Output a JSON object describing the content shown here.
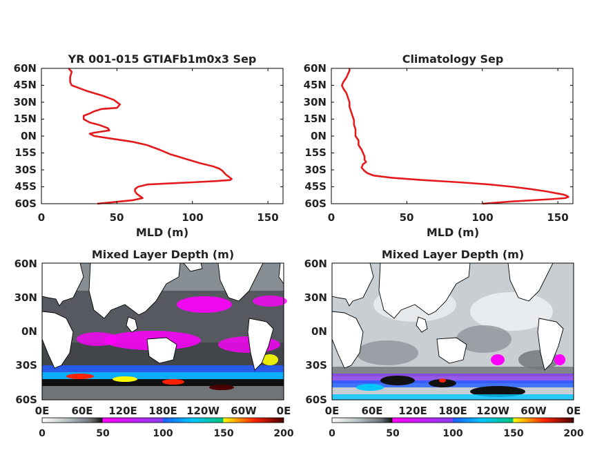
{
  "chart_data": [
    {
      "type": "line",
      "title": "YR 001-015 GTIAFb1m0x3 Sep",
      "xlabel": "MLD (m)",
      "ylabel": "",
      "xlim": [
        0,
        160
      ],
      "ylim": [
        -60,
        60
      ],
      "x_ticks": [
        "0",
        "50",
        "100",
        "150"
      ],
      "y_ticks": [
        "60N",
        "45N",
        "30N",
        "15N",
        "0N",
        "15S",
        "30S",
        "45S",
        "60S"
      ],
      "line_color": "#e41a1c",
      "series": [
        {
          "lat": [
            60,
            57,
            52,
            48,
            45,
            40,
            36,
            32,
            28,
            25,
            24,
            22,
            20,
            18,
            15,
            12,
            10,
            7,
            5,
            4,
            3,
            2,
            0,
            -2,
            -5,
            -8,
            -12,
            -16,
            -20,
            -24,
            -27,
            -29,
            -31,
            -34,
            -36,
            -38,
            -39,
            -40,
            -41,
            -42,
            -43,
            -45,
            -47,
            -49,
            -51,
            -53,
            -55,
            -57,
            -60
          ],
          "mld": [
            18,
            20,
            19,
            19,
            20,
            30,
            40,
            48,
            52,
            50,
            40,
            35,
            32,
            28,
            28,
            32,
            38,
            44,
            45,
            40,
            35,
            32,
            35,
            45,
            60,
            70,
            78,
            85,
            95,
            105,
            114,
            118,
            120,
            122,
            124,
            126,
            125,
            115,
            100,
            85,
            70,
            64,
            62,
            62,
            63,
            65,
            67,
            60,
            37
          ]
        }
      ]
    },
    {
      "type": "line",
      "title": "Climatology Sep",
      "xlabel": "MLD (m)",
      "ylabel": "",
      "xlim": [
        0,
        160
      ],
      "ylim": [
        -60,
        60
      ],
      "x_ticks": [
        "0",
        "50",
        "100",
        "150"
      ],
      "y_ticks": [
        "60N",
        "45N",
        "30N",
        "15N",
        "0N",
        "15S",
        "30S",
        "45S",
        "60S"
      ],
      "line_color": "#e41a1c",
      "series": [
        {
          "lat": [
            60,
            58,
            55,
            52,
            48,
            45,
            42,
            38,
            34,
            30,
            26,
            22,
            18,
            14,
            10,
            6,
            2,
            0,
            -4,
            -8,
            -12,
            -15,
            -18,
            -21,
            -23,
            -25,
            -28,
            -31,
            -33,
            -35,
            -37,
            -39,
            -41,
            -43,
            -45,
            -47,
            -49,
            -51,
            -52,
            -53,
            -54,
            -55,
            -56,
            -58,
            -60
          ],
          "mld": [
            12,
            12,
            11,
            10,
            8,
            7,
            8,
            10,
            11,
            12,
            12,
            13,
            14,
            15,
            15,
            16,
            16,
            16,
            18,
            18,
            20,
            21,
            22,
            22,
            23,
            21,
            20,
            22,
            24,
            28,
            40,
            60,
            85,
            105,
            120,
            132,
            142,
            150,
            154,
            156,
            157,
            155,
            145,
            120,
            100
          ]
        }
      ]
    },
    {
      "type": "heatmap",
      "title": "Mixed Layer Depth (m)",
      "x_ticks": [
        "0E",
        "60E",
        "120E",
        "180E",
        "120W",
        "60W",
        "0E"
      ],
      "y_ticks": [
        "60N",
        "30N",
        "0N",
        "30S",
        "60S"
      ],
      "ylim": [
        -60,
        60
      ],
      "colorbar_ticks": [
        "0",
        "50",
        "100",
        "150",
        "200"
      ],
      "colorbar_range": [
        0,
        200
      ]
    },
    {
      "type": "heatmap",
      "title": "Mixed Layer Depth (m)",
      "x_ticks": [
        "0E",
        "60E",
        "120E",
        "180E",
        "120W",
        "60W",
        "0E"
      ],
      "y_ticks": [
        "60N",
        "30N",
        "0N",
        "30S",
        "60S"
      ],
      "ylim": [
        -60,
        60
      ],
      "colorbar_ticks": [
        "0",
        "50",
        "100",
        "150",
        "200"
      ],
      "colorbar_range": [
        0,
        200
      ]
    }
  ],
  "colormap_stops": [
    "#ffffff",
    "#b4bcc0",
    "#6f7479",
    "#111111",
    "#ff00ff",
    "#8a3df0",
    "#1e5cff",
    "#00c8ff",
    "#00c27a",
    "#ffff00",
    "#ff2200",
    "#4a0000"
  ]
}
